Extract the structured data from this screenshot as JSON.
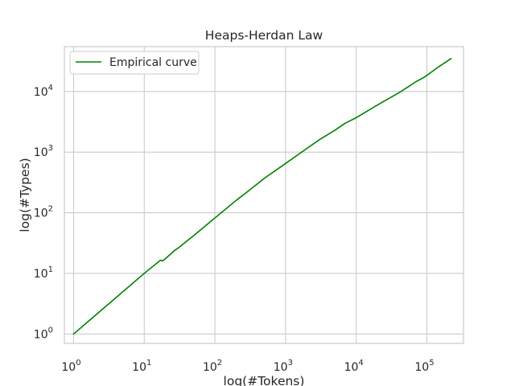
{
  "chart_data": {
    "type": "line",
    "title": "Heaps-Herdan Law",
    "xlabel": "log(#Tokens)",
    "ylabel": "log(#Types)",
    "x_scale": "log",
    "y_scale": "log",
    "xlim": [
      0.74,
      330000
    ],
    "ylim": [
      0.7,
      55000
    ],
    "grid": true,
    "legend_position": "upper left",
    "x_ticks": [
      {
        "value": 1,
        "base": "10",
        "exp": "0"
      },
      {
        "value": 10,
        "base": "10",
        "exp": "1"
      },
      {
        "value": 100,
        "base": "10",
        "exp": "2"
      },
      {
        "value": 1000,
        "base": "10",
        "exp": "3"
      },
      {
        "value": 10000,
        "base": "10",
        "exp": "4"
      },
      {
        "value": 100000,
        "base": "10",
        "exp": "5"
      }
    ],
    "y_ticks": [
      {
        "value": 1,
        "base": "10",
        "exp": "0"
      },
      {
        "value": 10,
        "base": "10",
        "exp": "1"
      },
      {
        "value": 100,
        "base": "10",
        "exp": "2"
      },
      {
        "value": 1000,
        "base": "10",
        "exp": "3"
      },
      {
        "value": 10000,
        "base": "10",
        "exp": "4"
      }
    ],
    "series": [
      {
        "name": "Empirical curve",
        "color": "#008000",
        "x": [
          1,
          2,
          5,
          10,
          17,
          18,
          20,
          27,
          30,
          50,
          70,
          90,
          100,
          200,
          300,
          500,
          1000,
          2000,
          3000,
          5000,
          7000,
          10000,
          20000,
          40000,
          70000,
          90000,
          110000,
          150000,
          220000
        ],
        "y": [
          1,
          2,
          5,
          10,
          16.5,
          16,
          17.5,
          24,
          26,
          42,
          58,
          74,
          82,
          160,
          230,
          370,
          650,
          1150,
          1600,
          2300,
          3000,
          3700,
          6000,
          9500,
          14500,
          17000,
          20000,
          26000,
          35000
        ]
      }
    ]
  },
  "colors": {
    "background": "#ffffff",
    "grid": "#cccccc",
    "axes_edge": "#cccccc",
    "text": "#262626",
    "series": "#008000"
  }
}
